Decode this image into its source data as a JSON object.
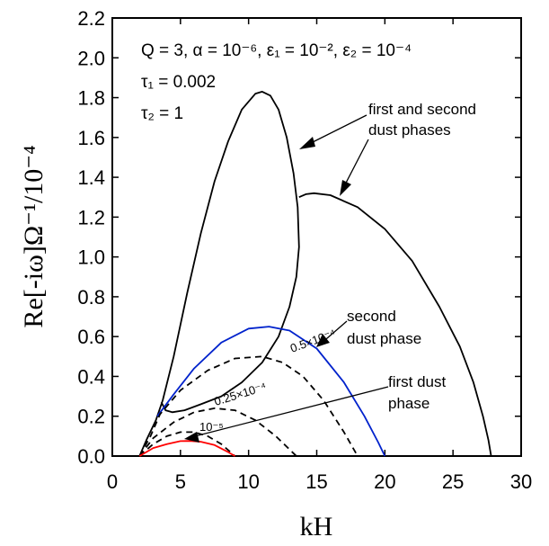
{
  "chart_data": {
    "type": "line",
    "xlabel": "kH",
    "ylabel": "Re[-iω]Ω⁻¹/10⁻⁴",
    "xlim": [
      0,
      30
    ],
    "ylim": [
      0,
      2.2
    ],
    "x_ticks": [
      "0",
      "5",
      "10",
      "15",
      "20",
      "25",
      "30"
    ],
    "y_ticks": [
      "0.0",
      "0.2",
      "0.4",
      "0.6",
      "0.8",
      "1.0",
      "1.2",
      "1.4",
      "1.6",
      "1.8",
      "2.0",
      "2.2"
    ],
    "grid": false,
    "params": {
      "line1": "Q = 3, α = 10⁻⁶, ε₁ = 10⁻², ε₂ = 10⁻⁴",
      "line2": "τ₁ = 0.002",
      "line3": "τ₂ = 1"
    },
    "annotations": {
      "both_phases_1": "first and second",
      "both_phases_2": "dust phases",
      "second_phase_1": "second",
      "second_phase_2": "dust phase",
      "first_phase_1": "first dust",
      "first_phase_2": "phase",
      "curve_05": "0.5×10⁻⁴",
      "curve_025": "0.25×10⁻⁴",
      "curve_1e5": "10⁻⁵"
    },
    "series": [
      {
        "style": "solid",
        "color": "#000000",
        "x": [
          2.0,
          2.5,
          3.2,
          3.7,
          4.5,
          5.5,
          6.5,
          7.5,
          8.5,
          9.5,
          10.5,
          11.0,
          11.6,
          12.2,
          12.8,
          13.3,
          13.6,
          13.7,
          13.5,
          13.0,
          12.2,
          11.0,
          9.5,
          8.0,
          6.5,
          5.3,
          4.4,
          3.9,
          3.6
        ],
        "y": [
          0.0,
          0.08,
          0.18,
          0.28,
          0.5,
          0.82,
          1.12,
          1.38,
          1.58,
          1.74,
          1.82,
          1.83,
          1.81,
          1.74,
          1.6,
          1.42,
          1.25,
          1.05,
          0.9,
          0.75,
          0.6,
          0.47,
          0.37,
          0.3,
          0.26,
          0.23,
          0.22,
          0.23,
          0.27
        ]
      },
      {
        "style": "solid",
        "color": "#000000",
        "x": [
          13.7,
          14.2,
          14.8,
          16.0,
          18.0,
          20.0,
          22.0,
          24.0,
          25.5,
          26.5,
          27.2,
          27.6,
          27.8
        ],
        "y": [
          1.3,
          1.315,
          1.32,
          1.31,
          1.25,
          1.14,
          0.98,
          0.75,
          0.55,
          0.37,
          0.2,
          0.08,
          0.0
        ]
      },
      {
        "style": "solid",
        "color": "#0022cc",
        "x": [
          3.3,
          4.5,
          6.0,
          8.0,
          10.0,
          11.5,
          13.0,
          15.0,
          17.0,
          18.5,
          19.5,
          20.0
        ],
        "y": [
          0.2,
          0.31,
          0.44,
          0.57,
          0.64,
          0.65,
          0.63,
          0.54,
          0.37,
          0.2,
          0.07,
          0.0
        ]
      },
      {
        "style": "dashed",
        "color": "#000000",
        "x": [
          2.0,
          2.8,
          3.5,
          5.0,
          7.0,
          9.0,
          11.0,
          12.5,
          14.0,
          15.5,
          17.0,
          18.0
        ],
        "y": [
          0.0,
          0.1,
          0.21,
          0.33,
          0.43,
          0.49,
          0.5,
          0.47,
          0.4,
          0.28,
          0.12,
          0.0
        ]
      },
      {
        "style": "dashed",
        "color": "#000000",
        "x": [
          2.0,
          3.0,
          4.5,
          6.0,
          7.5,
          9.0,
          10.5,
          12.0,
          13.5
        ],
        "y": [
          0.0,
          0.09,
          0.17,
          0.22,
          0.24,
          0.23,
          0.18,
          0.1,
          0.0
        ]
      },
      {
        "style": "dashed",
        "color": "#000000",
        "x": [
          2.0,
          3.0,
          4.0,
          5.0,
          6.0,
          7.0,
          8.0,
          9.0
        ],
        "y": [
          0.0,
          0.06,
          0.1,
          0.12,
          0.12,
          0.1,
          0.06,
          0.0
        ]
      },
      {
        "style": "solid",
        "color": "#ff0000",
        "x": [
          2.0,
          3.0,
          4.0,
          5.0,
          5.7,
          6.5,
          7.5,
          8.5,
          9.0
        ],
        "y": [
          0.0,
          0.04,
          0.06,
          0.075,
          0.076,
          0.072,
          0.055,
          0.02,
          0.0
        ]
      }
    ]
  }
}
